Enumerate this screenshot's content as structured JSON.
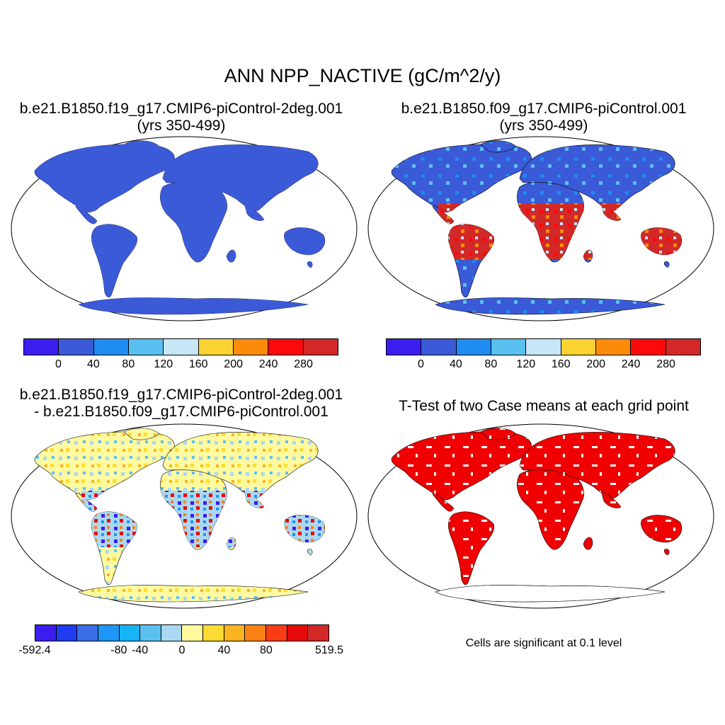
{
  "title": "ANN NPP_NACTIVE (gC/m^2/y)",
  "panels": [
    {
      "line1": "b.e21.B1850.f19_g17.CMIP6-piControl-2deg.001",
      "line2": "(yrs 350-499)"
    },
    {
      "line1": "b.e21.B1850.f09_g17.CMIP6-piControl.001",
      "line2": "(yrs 350-499)"
    },
    {
      "line1": "b.e21.B1850.f19_g17.CMIP6-piControl-2deg.001",
      "line2": "- b.e21.B1850.f09_g17.CMIP6-piControl.001"
    },
    {
      "line1": "T-Test of two Case means at each grid point"
    }
  ],
  "colorbar_main": {
    "colors": [
      "#3a1ef0",
      "#3a5ad8",
      "#1e8cf0",
      "#5ac0f0",
      "#c8e6f5",
      "#fcd232",
      "#fa8c0a",
      "#fa0a0a",
      "#d22828"
    ],
    "labels": [
      "0",
      "40",
      "80",
      "120",
      "160",
      "200",
      "240",
      "280"
    ]
  },
  "colorbar_diff": {
    "colors": [
      "#3a1ef0",
      "#1e3cf0",
      "#3a6ee6",
      "#1e96f5",
      "#14b4f5",
      "#5ac0f0",
      "#aad8f0",
      "#fffaa0",
      "#fcdc32",
      "#fab41e",
      "#fa8214",
      "#fa3c14",
      "#e60a0a",
      "#d22828"
    ],
    "labels": [
      "-592.4",
      "-80",
      "-40",
      "0",
      "40",
      "80",
      "519.5"
    ]
  },
  "significance_note": "Cells are significant at 0.1 level"
}
